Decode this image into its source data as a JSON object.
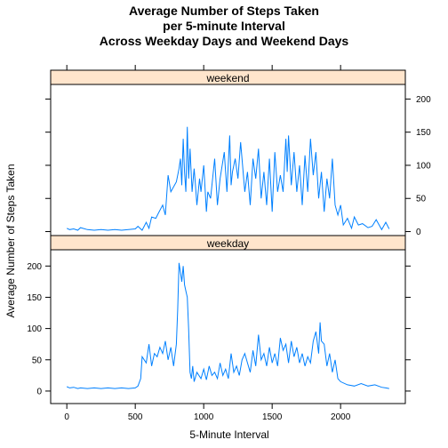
{
  "chart_data": {
    "type": "line",
    "title_lines": [
      "Average Number of Steps Taken",
      "per 5-minute Interval",
      "Across Weekday Days and Weekend Days"
    ],
    "xlabel": "5-Minute Interval",
    "ylabel": "Average Number of Steps Taken",
    "xlim": [
      -118,
      2473
    ],
    "ylim": [
      -20,
      226
    ],
    "xticks": [
      0,
      500,
      1000,
      1500,
      2000
    ],
    "yticks": [
      0,
      50,
      100,
      150,
      200
    ],
    "grid": false,
    "colors": {
      "line": "#0080ff",
      "strip": "#ffe5cc"
    },
    "panels": [
      {
        "label": "weekend",
        "x": [
          0,
          20,
          50,
          80,
          100,
          150,
          200,
          250,
          300,
          350,
          400,
          450,
          500,
          520,
          550,
          580,
          600,
          620,
          650,
          670,
          700,
          720,
          740,
          760,
          800,
          820,
          830,
          840,
          850,
          860,
          870,
          880,
          890,
          900,
          915,
          930,
          940,
          950,
          970,
          980,
          1000,
          1020,
          1030,
          1050,
          1080,
          1100,
          1120,
          1150,
          1170,
          1190,
          1200,
          1210,
          1230,
          1250,
          1270,
          1300,
          1320,
          1340,
          1360,
          1380,
          1400,
          1420,
          1440,
          1460,
          1480,
          1500,
          1520,
          1540,
          1560,
          1580,
          1600,
          1610,
          1620,
          1640,
          1660,
          1680,
          1700,
          1720,
          1740,
          1760,
          1780,
          1800,
          1820,
          1840,
          1860,
          1880,
          1900,
          1920,
          1940,
          1960,
          1980,
          2000,
          2020,
          2050,
          2080,
          2100,
          2130,
          2160,
          2200,
          2230,
          2260,
          2300,
          2330,
          2355
        ],
        "y": [
          5,
          3,
          4,
          2,
          6,
          3,
          2,
          3,
          2,
          3,
          2,
          3,
          4,
          8,
          2,
          14,
          5,
          22,
          20,
          28,
          40,
          25,
          85,
          60,
          75,
          95,
          110,
          70,
          140,
          90,
          60,
          158,
          80,
          125,
          60,
          95,
          70,
          40,
          80,
          60,
          100,
          30,
          60,
          50,
          110,
          40,
          80,
          120,
          60,
          145,
          70,
          90,
          110,
          80,
          135,
          60,
          90,
          40,
          110,
          80,
          125,
          50,
          90,
          40,
          110,
          30,
          120,
          60,
          85,
          60,
          140,
          90,
          145,
          70,
          120,
          60,
          100,
          40,
          115,
          60,
          140,
          85,
          120,
          50,
          90,
          30,
          80,
          50,
          110,
          40,
          25,
          40,
          10,
          20,
          5,
          22,
          10,
          12,
          6,
          8,
          18,
          3,
          14,
          4
        ],
        "ylim": [
          -6,
          222
        ],
        "yticks_right": [
          0,
          50,
          100,
          150,
          200
        ]
      },
      {
        "label": "weekday",
        "x": [
          0,
          20,
          50,
          80,
          100,
          150,
          200,
          250,
          300,
          350,
          400,
          450,
          500,
          520,
          540,
          550,
          580,
          600,
          620,
          640,
          660,
          680,
          700,
          720,
          740,
          760,
          780,
          800,
          810,
          820,
          830,
          840,
          850,
          860,
          870,
          880,
          890,
          900,
          910,
          920,
          930,
          950,
          980,
          1000,
          1020,
          1040,
          1060,
          1080,
          1100,
          1120,
          1140,
          1160,
          1180,
          1200,
          1220,
          1240,
          1260,
          1280,
          1300,
          1320,
          1340,
          1360,
          1380,
          1400,
          1420,
          1440,
          1460,
          1480,
          1500,
          1520,
          1540,
          1560,
          1580,
          1600,
          1620,
          1640,
          1660,
          1680,
          1700,
          1720,
          1740,
          1760,
          1780,
          1800,
          1820,
          1840,
          1850,
          1860,
          1880,
          1900,
          1920,
          1940,
          1960,
          1980,
          2000,
          2050,
          2100,
          2150,
          2200,
          2250,
          2300,
          2330,
          2355
        ],
        "y": [
          7,
          5,
          6,
          4,
          5,
          4,
          5,
          4,
          5,
          4,
          5,
          4,
          5,
          8,
          20,
          55,
          45,
          75,
          40,
          60,
          55,
          70,
          60,
          80,
          50,
          70,
          40,
          75,
          130,
          205,
          190,
          175,
          200,
          170,
          160,
          150,
          100,
          30,
          20,
          40,
          15,
          30,
          20,
          35,
          18,
          40,
          25,
          30,
          20,
          45,
          25,
          35,
          20,
          60,
          30,
          40,
          25,
          50,
          60,
          45,
          30,
          65,
          40,
          90,
          50,
          60,
          40,
          70,
          45,
          60,
          40,
          85,
          65,
          75,
          45,
          80,
          55,
          70,
          45,
          60,
          40,
          55,
          45,
          80,
          95,
          60,
          110,
          80,
          75,
          40,
          60,
          30,
          50,
          20,
          15,
          10,
          8,
          12,
          8,
          10,
          6,
          5,
          4
        ]
      }
    ]
  }
}
